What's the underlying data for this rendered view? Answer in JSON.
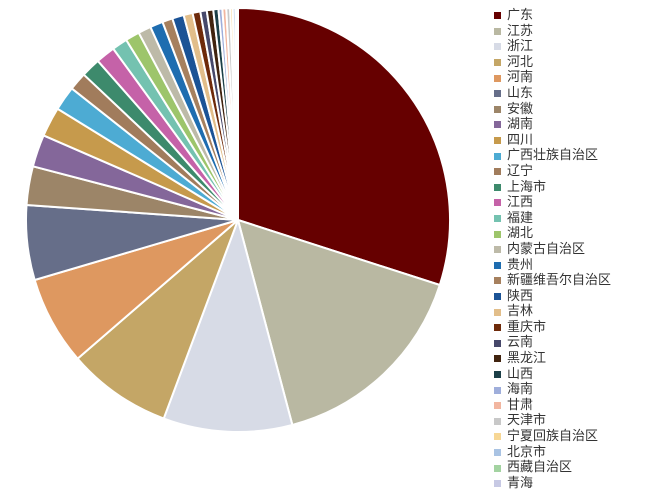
{
  "chart_data": {
    "type": "pie",
    "title": "",
    "legend_position": "right",
    "slices": [
      {
        "label": "广东",
        "value": 30.5,
        "color": "#660000"
      },
      {
        "label": "江苏",
        "value": 16.2,
        "color": "#B9B8A2"
      },
      {
        "label": "浙江",
        "value": 10.0,
        "color": "#D7DBE6"
      },
      {
        "label": "河北",
        "value": 8.1,
        "color": "#C4A666"
      },
      {
        "label": "河南",
        "value": 6.9,
        "color": "#DE9860"
      },
      {
        "label": "山东",
        "value": 5.8,
        "color": "#666E89"
      },
      {
        "label": "安徽",
        "value": 3.0,
        "color": "#9C8568"
      },
      {
        "label": "湖南",
        "value": 2.5,
        "color": "#84679A"
      },
      {
        "label": "四川",
        "value": 2.3,
        "color": "#C69A4C"
      },
      {
        "label": "广西壮族自治区",
        "value": 1.9,
        "color": "#4DABD3"
      },
      {
        "label": "辽宁",
        "value": 1.4,
        "color": "#A17C5C"
      },
      {
        "label": "上海市",
        "value": 1.5,
        "color": "#3D8A6C"
      },
      {
        "label": "江西",
        "value": 1.5,
        "color": "#C562A8"
      },
      {
        "label": "福建",
        "value": 1.2,
        "color": "#74C2B0"
      },
      {
        "label": "湖北",
        "value": 1.1,
        "color": "#9DC56B"
      },
      {
        "label": "内蒙古自治区",
        "value": 1.0,
        "color": "#BDBAA8"
      },
      {
        "label": "贵州",
        "value": 1.0,
        "color": "#1E6DB0"
      },
      {
        "label": "新疆维吾尔自治区",
        "value": 0.8,
        "color": "#A6805E"
      },
      {
        "label": "陕西",
        "value": 0.9,
        "color": "#1B5396"
      },
      {
        "label": "吉林",
        "value": 0.7,
        "color": "#E2BE8A"
      },
      {
        "label": "重庆市",
        "value": 0.6,
        "color": "#6E2A0A"
      },
      {
        "label": "云南",
        "value": 0.5,
        "color": "#46486A"
      },
      {
        "label": "黑龙江",
        "value": 0.5,
        "color": "#40230F"
      },
      {
        "label": "山西",
        "value": 0.4,
        "color": "#1B3F47"
      },
      {
        "label": "海南",
        "value": 0.3,
        "color": "#9FAEDB"
      },
      {
        "label": "甘肃",
        "value": 0.3,
        "color": "#F2B6A0"
      },
      {
        "label": "天津市",
        "value": 0.3,
        "color": "#C8C8C8"
      },
      {
        "label": "宁夏回族自治区",
        "value": 0.2,
        "color": "#F7D795"
      },
      {
        "label": "北京市",
        "value": 0.2,
        "color": "#A9C3E3"
      },
      {
        "label": "西藏自治区",
        "value": 0.1,
        "color": "#A3D3A1"
      },
      {
        "label": "青海",
        "value": 0.1,
        "color": "#C7C9E4"
      }
    ]
  }
}
